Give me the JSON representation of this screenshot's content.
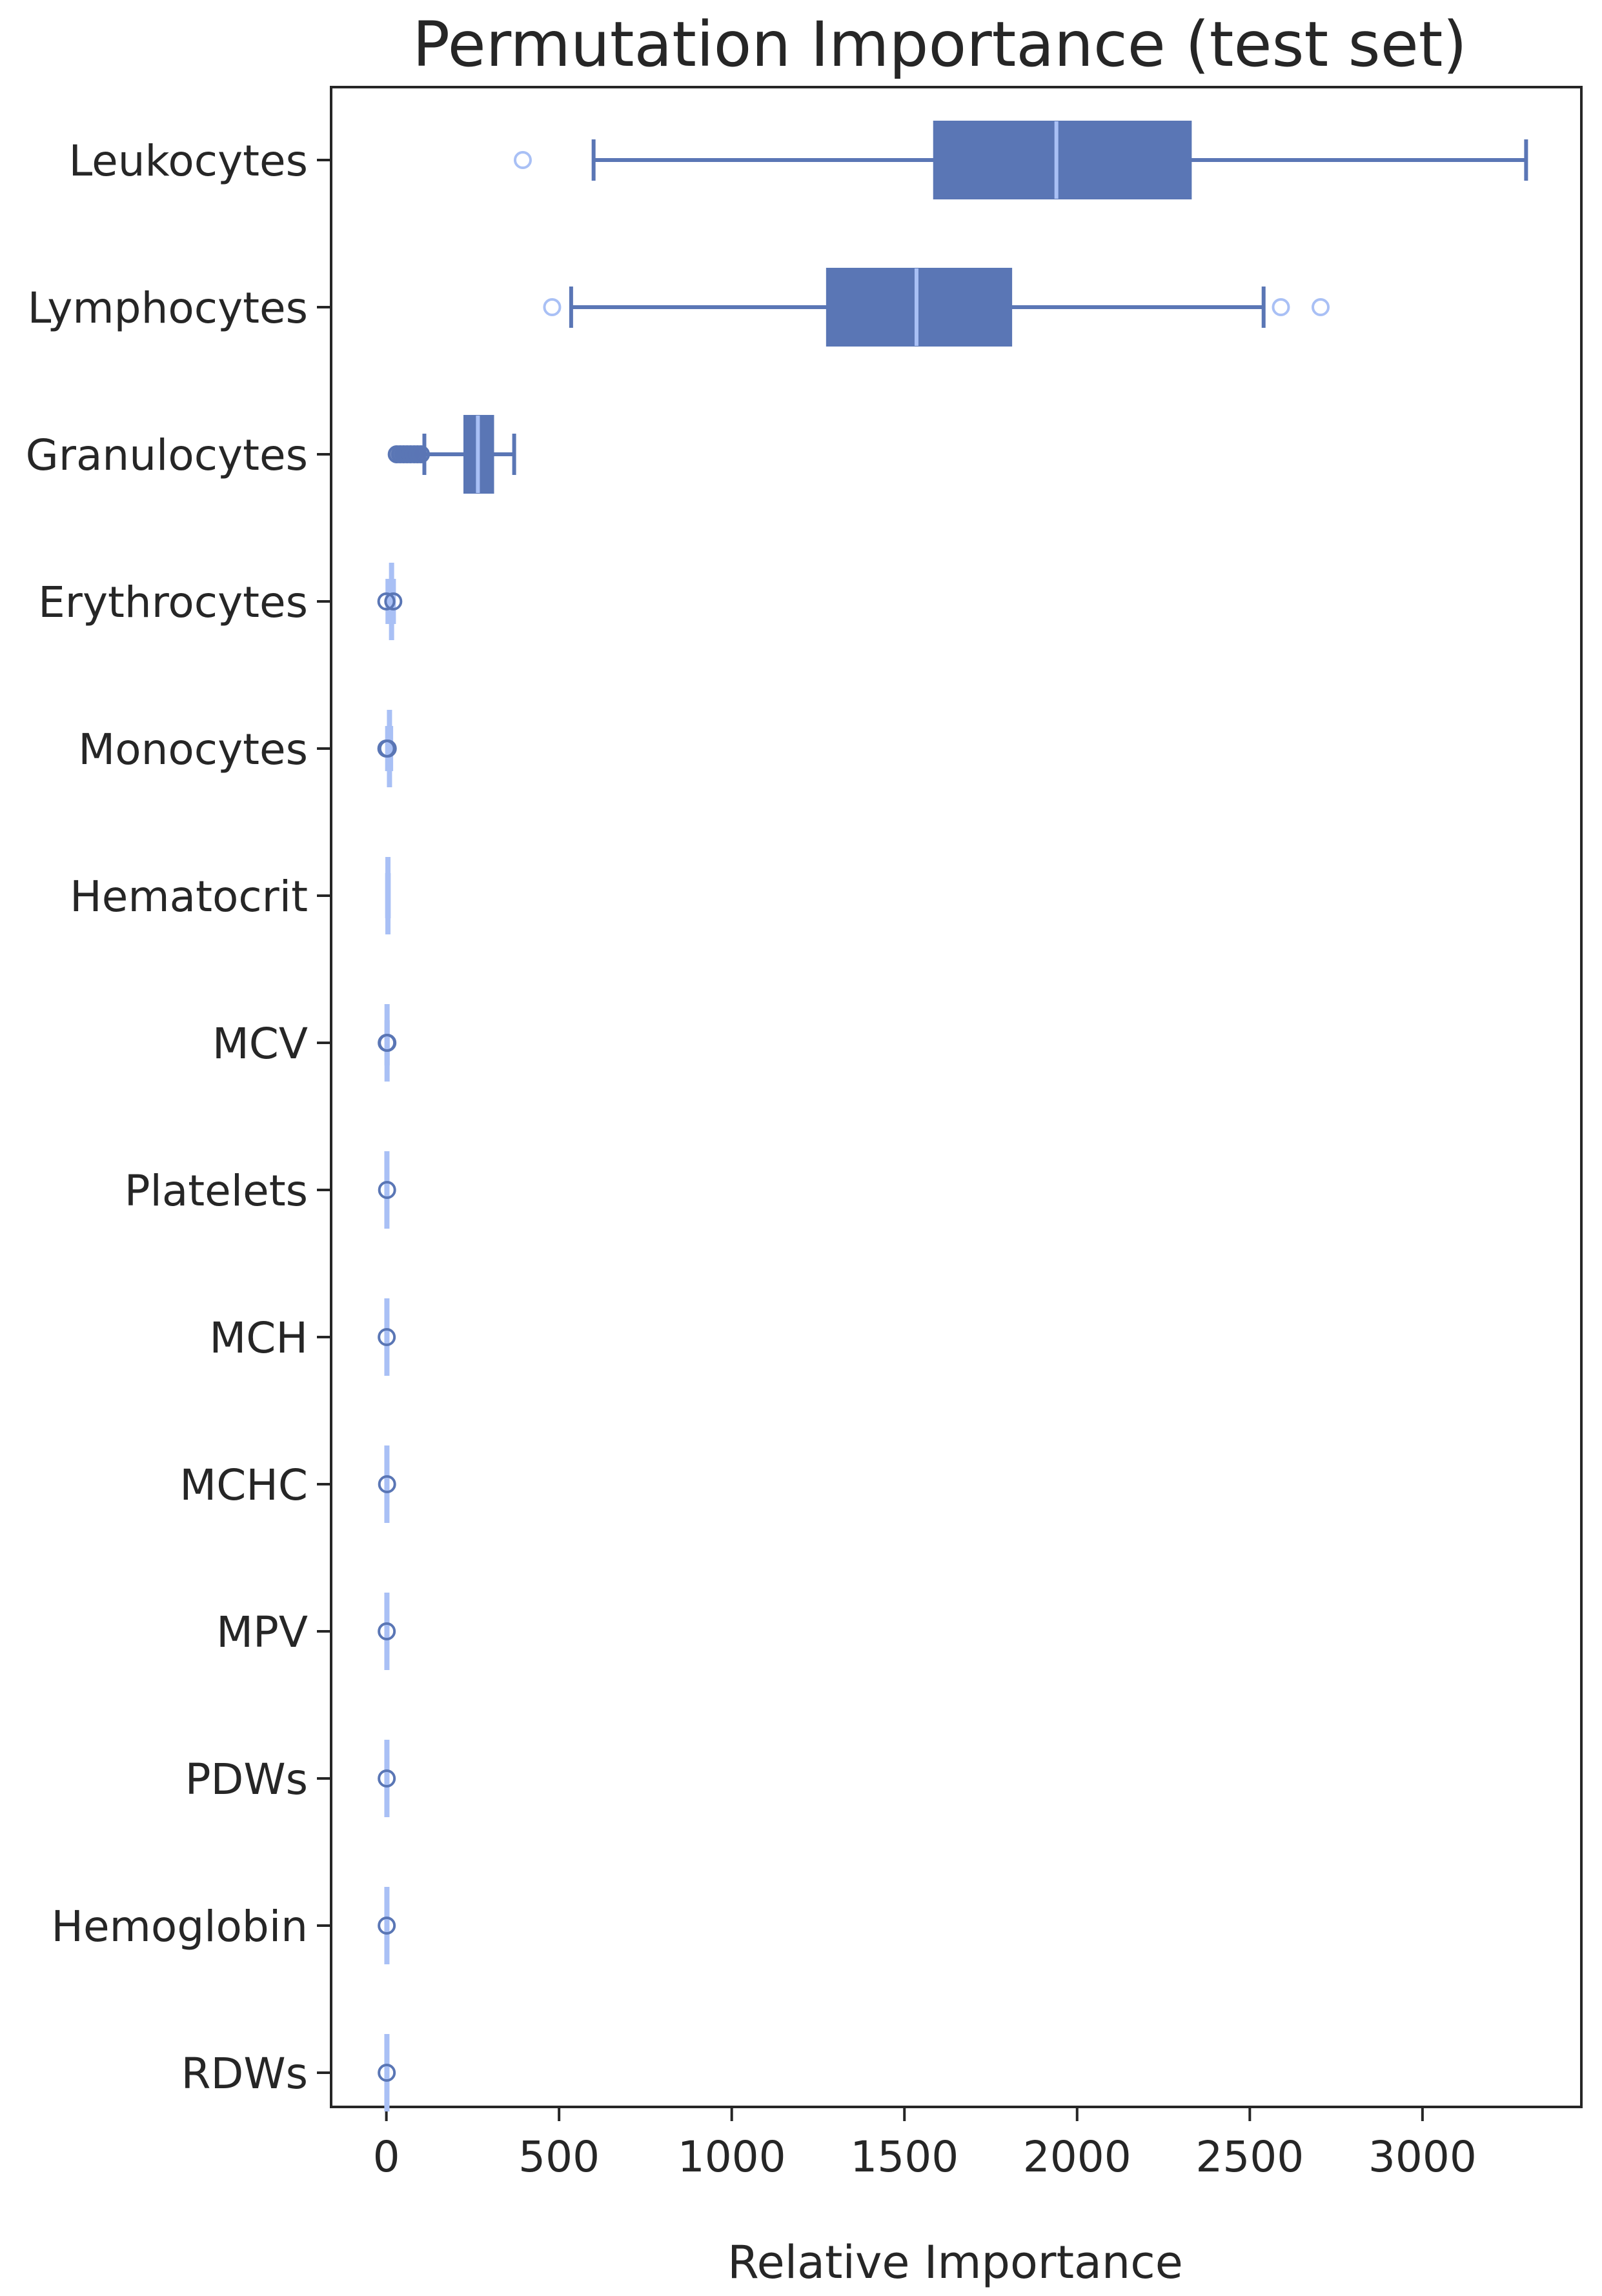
{
  "chart_data": {
    "type": "box",
    "orientation": "horizontal",
    "title": "Permutation Importance (test set)",
    "xlabel": "Relative Importance",
    "ylabel": "",
    "xlim": [
      -160,
      3460
    ],
    "xticks": [
      0,
      500,
      1000,
      1500,
      2000,
      2500,
      3000
    ],
    "grid": false,
    "colors": {
      "strong": "#5a76b5",
      "light": "#a9c0f5",
      "outline": "#5a76b5"
    },
    "categories": [
      "Leukocytes",
      "Lymphocytes",
      "Granulocytes",
      "Erythrocytes",
      "Monocytes",
      "Hematocrit",
      "MCV",
      "Platelets",
      "MCH",
      "MCHC",
      "MPV",
      "PDWs",
      "Hemoglobin",
      "RDWs"
    ],
    "boxes": [
      {
        "label": "Leukocytes",
        "whisker_low": 600,
        "q1": 1585,
        "median": 1940,
        "q3": 2330,
        "whisker_high": 3300,
        "outliers": [
          395
        ],
        "style": "strong"
      },
      {
        "label": "Lymphocytes",
        "whisker_low": 535,
        "q1": 1275,
        "median": 1535,
        "q3": 1810,
        "whisker_high": 2540,
        "outliers": [
          480,
          2590,
          2705
        ],
        "style": "strong"
      },
      {
        "label": "Granulocytes",
        "whisker_low": 110,
        "q1": 225,
        "median": 265,
        "q3": 310,
        "whisker_high": 370,
        "outliers": [
          30,
          40,
          50,
          60,
          70,
          80,
          90,
          100
        ],
        "style": "strong"
      },
      {
        "label": "Erythrocytes",
        "whisker_low": 3,
        "q1": 10,
        "median": 15,
        "q3": 20,
        "whisker_high": 22,
        "outliers": [
          0,
          20
        ],
        "style": "light"
      },
      {
        "label": "Monocytes",
        "whisker_low": 2,
        "q1": 6,
        "median": 8,
        "q3": 12,
        "whisker_high": 14,
        "outliers": [
          0,
          4
        ],
        "style": "light"
      },
      {
        "label": "Hematocrit",
        "whisker_low": 2,
        "q1": 3,
        "median": 4,
        "q3": 6,
        "whisker_high": 7,
        "outliers": [],
        "style": "light"
      },
      {
        "label": "MCV",
        "whisker_low": 0,
        "q1": 1,
        "median": 2,
        "q3": 3,
        "whisker_high": 4,
        "outliers": [
          1,
          3
        ],
        "style": "light"
      },
      {
        "label": "Platelets",
        "whisker_low": 0,
        "q1": 1,
        "median": 1,
        "q3": 2,
        "whisker_high": 3,
        "outliers": [
          2
        ],
        "style": "light"
      },
      {
        "label": "MCH",
        "whisker_low": 0,
        "q1": 1,
        "median": 1,
        "q3": 2,
        "whisker_high": 3,
        "outliers": [
          1
        ],
        "style": "light"
      },
      {
        "label": "MCHC",
        "whisker_low": 0,
        "q1": 1,
        "median": 1,
        "q3": 2,
        "whisker_high": 3,
        "outliers": [
          2
        ],
        "style": "light"
      },
      {
        "label": "MPV",
        "whisker_low": 0,
        "q1": 1,
        "median": 1,
        "q3": 2,
        "whisker_high": 3,
        "outliers": [
          1
        ],
        "style": "light"
      },
      {
        "label": "PDWs",
        "whisker_low": 0,
        "q1": 1,
        "median": 1,
        "q3": 2,
        "whisker_high": 3,
        "outliers": [
          1
        ],
        "style": "light"
      },
      {
        "label": "Hemoglobin",
        "whisker_low": 0,
        "q1": 1,
        "median": 1,
        "q3": 2,
        "whisker_high": 3,
        "outliers": [
          1
        ],
        "style": "light"
      },
      {
        "label": "RDWs",
        "whisker_low": 0,
        "q1": 1,
        "median": 1,
        "q3": 2,
        "whisker_high": 3,
        "outliers": [
          1
        ],
        "style": "light"
      }
    ]
  }
}
